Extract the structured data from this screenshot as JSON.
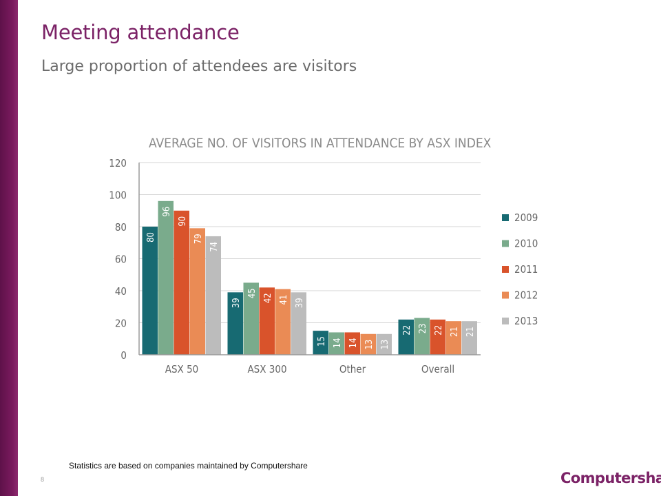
{
  "slide": {
    "title": "Meeting attendance",
    "subtitle": "Large proportion of attendees are visitors",
    "footnote": "Statistics are based on companies maintained by Computershare",
    "page_number": "8",
    "logo": "Computershare",
    "accent_color": "#7b2266"
  },
  "chart_data": {
    "type": "bar",
    "title": "AVERAGE NO. OF VISITORS IN ATTENDANCE BY ASX INDEX",
    "xlabel": "",
    "ylabel": "",
    "categories": [
      "ASX 50",
      "ASX 300",
      "Other",
      "Overall"
    ],
    "series": [
      {
        "name": "2009",
        "color": "#176a72",
        "values": [
          80,
          39,
          15,
          22
        ]
      },
      {
        "name": "2010",
        "color": "#7aab8c",
        "values": [
          96,
          45,
          14,
          23
        ]
      },
      {
        "name": "2011",
        "color": "#d9532b",
        "values": [
          90,
          42,
          14,
          22
        ]
      },
      {
        "name": "2012",
        "color": "#ea8b55",
        "values": [
          79,
          41,
          13,
          21
        ]
      },
      {
        "name": "2013",
        "color": "#bcbcbc",
        "values": [
          74,
          39,
          13,
          21
        ]
      }
    ],
    "ylim": [
      0,
      120
    ],
    "yticks": [
      0,
      20,
      40,
      60,
      80,
      100,
      120
    ],
    "grid": true,
    "legend": "right",
    "data_labels": true
  }
}
